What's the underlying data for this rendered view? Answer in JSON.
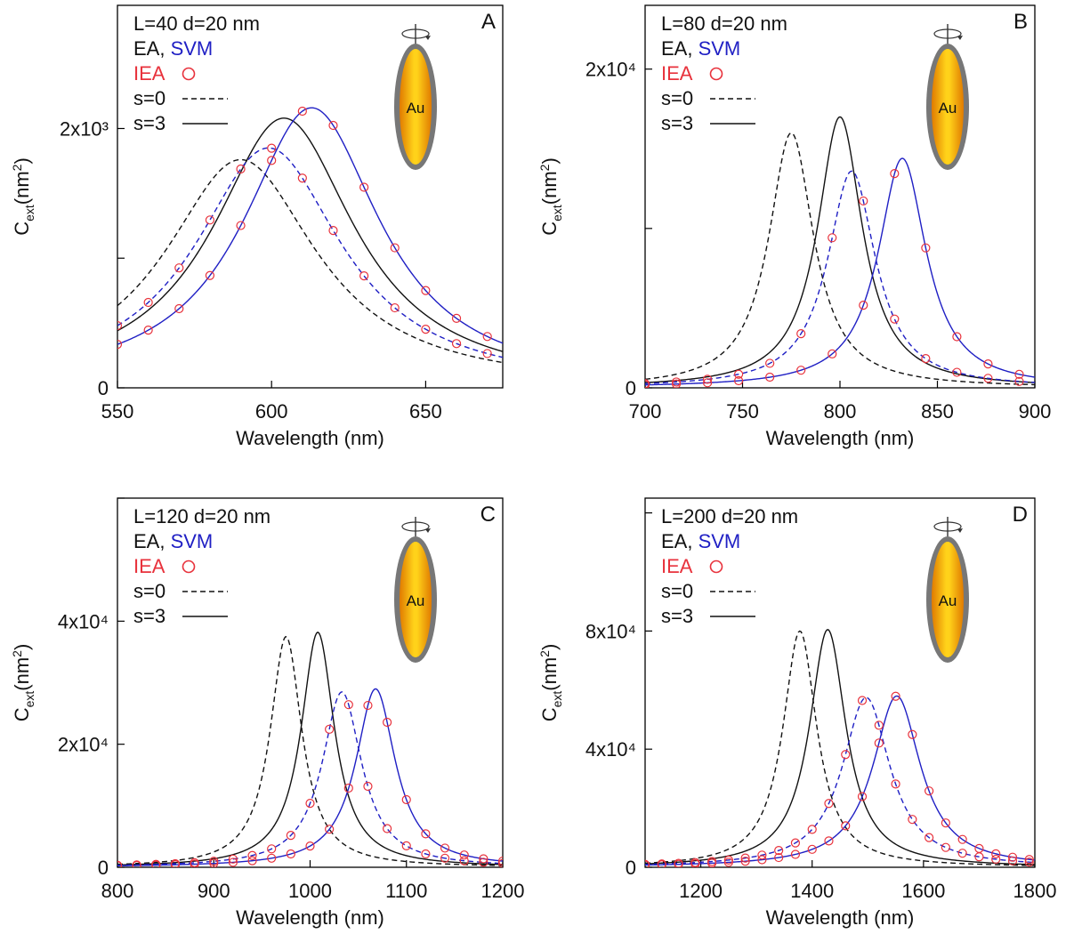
{
  "colors": {
    "ea": "#111111",
    "svm": "#1f1fc4",
    "iea": "#e8323c",
    "axis": "#000000"
  },
  "legend": {
    "ea": "EA,",
    "svm": "SVM",
    "iea": "IEA",
    "s0": "s=0",
    "s3": "s=3"
  },
  "inset": {
    "label": "Au",
    "icon": "rotating-gold-nanorod-icon"
  },
  "chart_data": [
    {
      "panel": "A",
      "type": "line",
      "annotation": "L=40 d=20 nm",
      "xlabel": "Wavelength (nm)",
      "ylabel": "C_ext(nm²)",
      "xlim": [
        550,
        675
      ],
      "ylim": [
        0,
        2950
      ],
      "xticks": [
        550,
        600,
        650
      ],
      "xtick_labels": [
        "550",
        "600",
        "650"
      ],
      "yticks": [
        0,
        1000,
        2000,
        3000
      ],
      "ytick_labels": [
        "0",
        "",
        "2x10³",
        ""
      ],
      "series": [
        {
          "method": "EA",
          "s": 0,
          "style": "dashed",
          "peak_x": 590,
          "peak_y": 1760,
          "hwhm": 30
        },
        {
          "method": "EA",
          "s": 3,
          "style": "solid",
          "peak_x": 604,
          "peak_y": 2080,
          "hwhm": 28
        },
        {
          "method": "SVM",
          "s": 0,
          "style": "dashed",
          "peak_x": 599,
          "peak_y": 1850,
          "hwhm": 29
        },
        {
          "method": "SVM",
          "s": 3,
          "style": "solid",
          "peak_x": 613,
          "peak_y": 2160,
          "hwhm": 27
        }
      ],
      "iea_points": {
        "s0_x": [
          550,
          560,
          570,
          580,
          590,
          600,
          610,
          620,
          630,
          640,
          650,
          660,
          670
        ],
        "s3_x": [
          550,
          560,
          570,
          580,
          590,
          600,
          610,
          620,
          630,
          640,
          650,
          660,
          670
        ]
      }
    },
    {
      "panel": "B",
      "type": "line",
      "annotation": "L=80 d=20 nm",
      "xlabel": "Wavelength (nm)",
      "ylabel": "C_ext(nm²)",
      "xlim": [
        700,
        900
      ],
      "ylim": [
        0,
        24000
      ],
      "xticks": [
        700,
        750,
        800,
        850,
        900
      ],
      "xtick_labels": [
        "700",
        "750",
        "800",
        "850",
        "900"
      ],
      "yticks": [
        0,
        10000,
        20000
      ],
      "ytick_labels": [
        "0",
        "",
        "2x10⁴"
      ],
      "series": [
        {
          "method": "EA",
          "s": 0,
          "style": "dashed",
          "peak_x": 775,
          "peak_y": 16000,
          "hwhm": 14
        },
        {
          "method": "EA",
          "s": 3,
          "style": "solid",
          "peak_x": 800,
          "peak_y": 17000,
          "hwhm": 14
        },
        {
          "method": "SVM",
          "s": 0,
          "style": "dashed",
          "peak_x": 806,
          "peak_y": 13600,
          "hwhm": 15
        },
        {
          "method": "SVM",
          "s": 3,
          "style": "solid",
          "peak_x": 832,
          "peak_y": 14400,
          "hwhm": 15
        }
      ],
      "iea_points": {
        "s0_x": [
          700,
          716,
          732,
          748,
          764,
          780,
          796,
          812,
          828,
          844,
          860,
          876,
          892
        ],
        "s3_x": [
          700,
          716,
          732,
          748,
          764,
          780,
          796,
          812,
          828,
          844,
          860,
          876,
          892
        ]
      }
    },
    {
      "panel": "C",
      "type": "line",
      "annotation": "L=120 d=20 nm",
      "xlabel": "Wavelength (nm)",
      "ylabel": "C_ext(nm²)",
      "xlim": [
        800,
        1200
      ],
      "ylim": [
        0,
        60000
      ],
      "xticks": [
        800,
        900,
        1000,
        1100,
        1200
      ],
      "xtick_labels": [
        "800",
        "900",
        "1000",
        "1100",
        "1200"
      ],
      "yticks": [
        0,
        20000,
        40000,
        60000
      ],
      "ytick_labels": [
        "0",
        "2x10⁴",
        "4x10⁴",
        ""
      ],
      "series": [
        {
          "method": "EA",
          "s": 0,
          "style": "dashed",
          "peak_x": 975,
          "peak_y": 37500,
          "hwhm": 20
        },
        {
          "method": "EA",
          "s": 3,
          "style": "solid",
          "peak_x": 1008,
          "peak_y": 38200,
          "hwhm": 21
        },
        {
          "method": "SVM",
          "s": 0,
          "style": "dashed",
          "peak_x": 1033,
          "peak_y": 28500,
          "hwhm": 25
        },
        {
          "method": "SVM",
          "s": 3,
          "style": "solid",
          "peak_x": 1068,
          "peak_y": 29000,
          "hwhm": 25
        }
      ],
      "iea_points": {
        "s0_x": [
          800,
          820,
          840,
          860,
          880,
          900,
          920,
          940,
          960,
          980,
          1000,
          1020,
          1040,
          1060,
          1080,
          1100,
          1120,
          1140,
          1160,
          1180,
          1200
        ],
        "s3_x": [
          800,
          820,
          840,
          860,
          880,
          900,
          920,
          940,
          960,
          980,
          1000,
          1020,
          1040,
          1060,
          1080,
          1100,
          1120,
          1140,
          1160,
          1180,
          1200
        ]
      }
    },
    {
      "panel": "D",
      "type": "line",
      "annotation": "L=200 d=20 nm",
      "xlabel": "Wavelength (nm)",
      "ylabel": "C_ext(nm²)",
      "xlim": [
        1100,
        1800
      ],
      "ylim": [
        0,
        125000
      ],
      "xticks": [
        1200,
        1400,
        1600,
        1800
      ],
      "xtick_labels": [
        "1200",
        "1400",
        "1600",
        "1800"
      ],
      "yticks": [
        0,
        40000,
        80000,
        120000
      ],
      "ytick_labels": [
        "0",
        "4x10⁴",
        "8x10⁴",
        ""
      ],
      "series": [
        {
          "method": "EA",
          "s": 0,
          "style": "dashed",
          "peak_x": 1378,
          "peak_y": 80000,
          "hwhm": 37
        },
        {
          "method": "EA",
          "s": 3,
          "style": "solid",
          "peak_x": 1428,
          "peak_y": 80500,
          "hwhm": 40
        },
        {
          "method": "SVM",
          "s": 0,
          "style": "dashed",
          "peak_x": 1497,
          "peak_y": 57500,
          "hwhm": 52
        },
        {
          "method": "SVM",
          "s": 3,
          "style": "solid",
          "peak_x": 1552,
          "peak_y": 58000,
          "hwhm": 52
        }
      ],
      "iea_points": {
        "s0_x": [
          1100,
          1130,
          1160,
          1190,
          1220,
          1250,
          1280,
          1310,
          1340,
          1370,
          1400,
          1430,
          1460,
          1490,
          1520,
          1550,
          1580,
          1610,
          1640,
          1670,
          1700,
          1730,
          1760,
          1790
        ],
        "s3_x": [
          1100,
          1130,
          1160,
          1190,
          1220,
          1250,
          1280,
          1310,
          1340,
          1370,
          1400,
          1430,
          1460,
          1490,
          1520,
          1550,
          1580,
          1610,
          1640,
          1670,
          1700,
          1730,
          1760,
          1790
        ]
      }
    }
  ]
}
